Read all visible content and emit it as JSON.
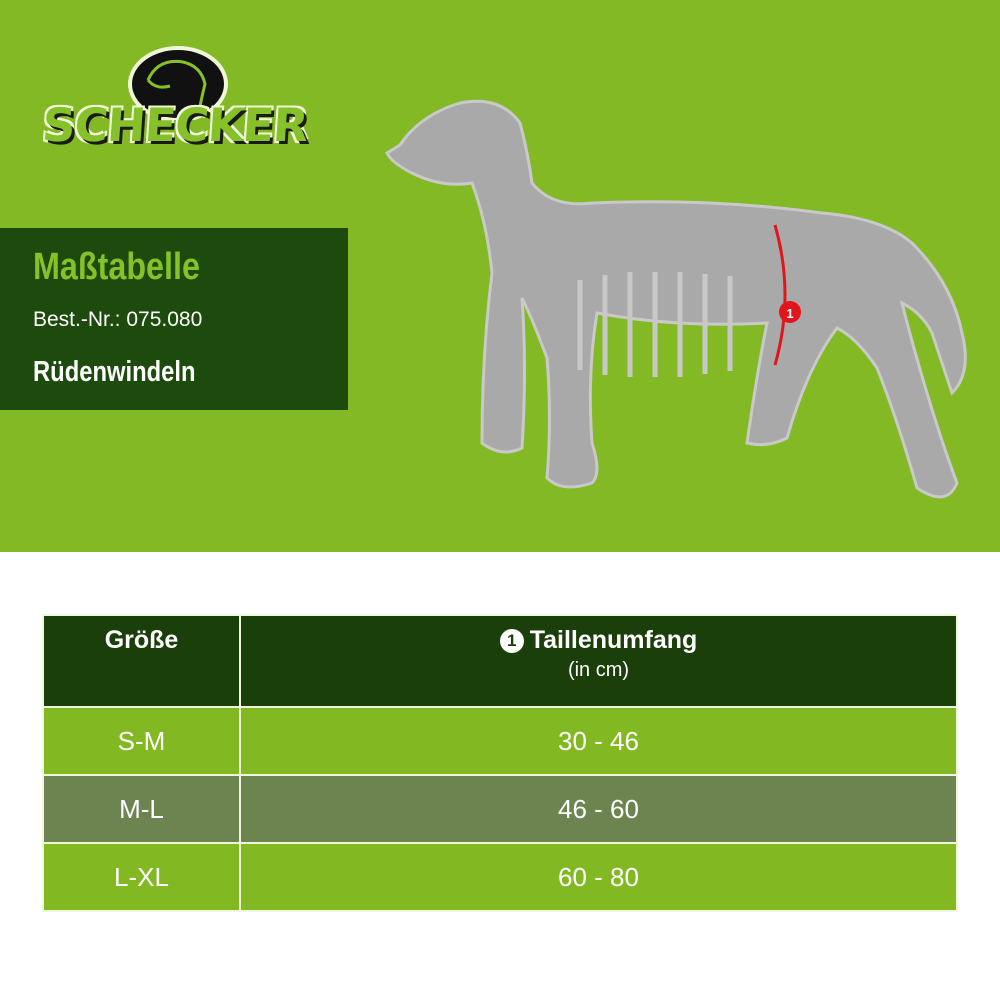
{
  "brand": {
    "logo_text": "SCHECKER"
  },
  "banner": {
    "title": "Maßtabelle",
    "order_number": "Best.-Nr.: 075.080",
    "product": "Rüdenwindeln"
  },
  "illustration": {
    "marker_label": "1",
    "marker_color": "#e0161c"
  },
  "table": {
    "headers": {
      "size": "Größe",
      "measure_number": "1",
      "measure": "Taillenumfang",
      "unit": "(in cm)"
    },
    "rows": [
      {
        "size": "S-M",
        "waist": "30 - 46"
      },
      {
        "size": "M-L",
        "waist": "46 - 60"
      },
      {
        "size": "L-XL",
        "waist": "60 - 80"
      }
    ]
  },
  "colors": {
    "background_green": "#83b925",
    "dark_green": "#1b3f0a",
    "row_gray_green": "#6c8550"
  }
}
